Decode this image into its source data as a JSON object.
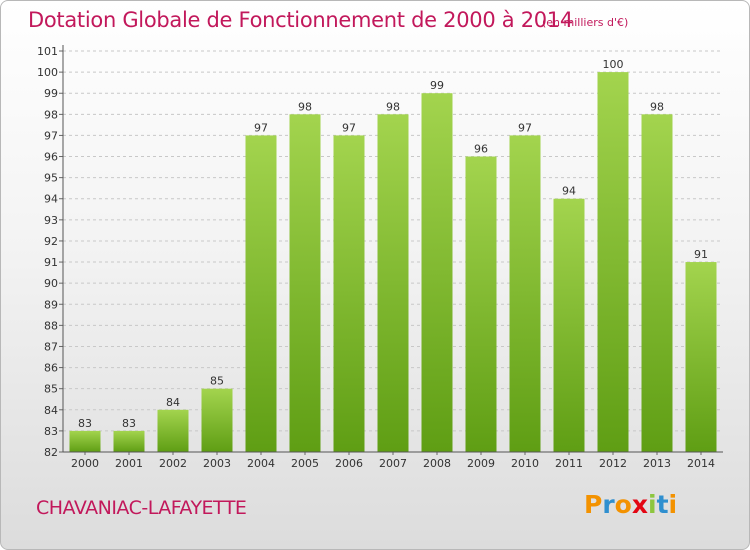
{
  "header": {
    "title": "Dotation Globale de Fonctionnement de 2000 à 2014",
    "units": "(en milliers d'€)"
  },
  "footer": {
    "commune": "CHAVANIAC-LAFAYETTE",
    "logo_letters": [
      "P",
      "r",
      "o",
      "x",
      "i",
      "t",
      "i"
    ],
    "logo_colors": [
      "#f39200",
      "#2f8fcf",
      "#f39200",
      "#e30613",
      "#8dc63f",
      "#2f8fcf",
      "#f39200"
    ]
  },
  "colors": {
    "title": "#c2185b",
    "bar_light": "#a3d44e",
    "bar_dark": "#5f9e14",
    "grid": "#c8c8c8"
  },
  "chart_data": {
    "type": "bar",
    "title": "Dotation Globale de Fonctionnement de 2000 à 2014",
    "xlabel": "",
    "ylabel": "",
    "categories": [
      "2000",
      "2001",
      "2002",
      "2003",
      "2004",
      "2005",
      "2006",
      "2007",
      "2008",
      "2009",
      "2010",
      "2011",
      "2012",
      "2013",
      "2014"
    ],
    "values": [
      83,
      83,
      84,
      85,
      97,
      98,
      97,
      98,
      99,
      96,
      97,
      94,
      100,
      98,
      91
    ],
    "ylim": [
      82,
      101
    ],
    "yticks": [
      82,
      83,
      84,
      85,
      86,
      87,
      88,
      89,
      90,
      91,
      92,
      93,
      94,
      95,
      96,
      97,
      98,
      99,
      100,
      101
    ],
    "ytick_labels": [
      "82",
      "83",
      "84",
      "85",
      "86",
      "87",
      "88",
      "89",
      "90",
      "91",
      "92",
      "93",
      "94",
      "95",
      "96",
      "97",
      "98",
      "99",
      "100",
      "101"
    ],
    "grid": true,
    "data_labels": true
  }
}
